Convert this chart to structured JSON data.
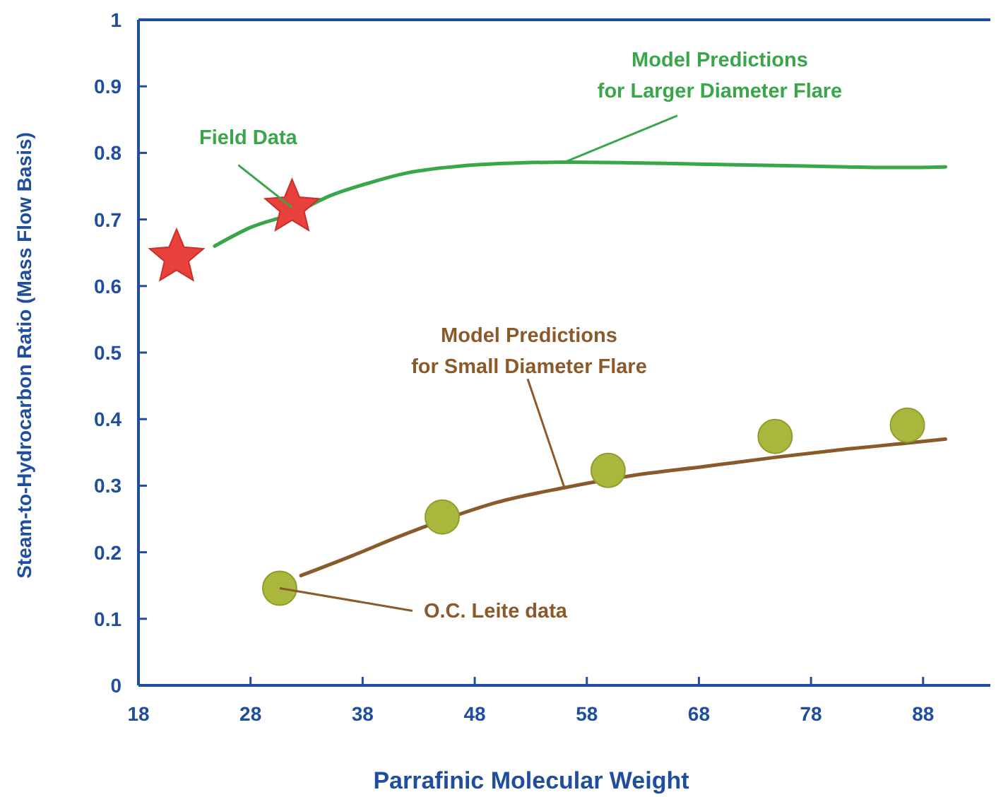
{
  "chart_data": {
    "type": "line",
    "xlabel": "Parrafinic Molecular Weight",
    "ylabel": "Steam-to-Hydrocarbon Ratio (Mass Flow Basis)",
    "xlim": [
      18,
      94
    ],
    "xticks": [
      18,
      28,
      38,
      48,
      58,
      68,
      78,
      88
    ],
    "ylim": [
      0,
      1
    ],
    "yticks": [
      0,
      0.1,
      0.2,
      0.3,
      0.4,
      0.5,
      0.6,
      0.7,
      0.8,
      0.9,
      1
    ],
    "grid": false,
    "series": [
      {
        "color": "#3aa64a",
        "marker": "none",
        "x": [
          24.8,
          28,
          32.1,
          35,
          38.4,
          42,
          47.2,
          52,
          56,
          62,
          68.6,
          75,
          81.2,
          86,
          90
        ],
        "values": [
          0.66,
          0.688,
          0.711,
          0.735,
          0.754,
          0.77,
          0.781,
          0.785,
          0.786,
          0.785,
          0.783,
          0.781,
          0.779,
          0.778,
          0.779
        ]
      },
      {
        "color": "#8b5a2b",
        "marker": "none",
        "x": [
          32.5,
          37.1,
          41,
          45.1,
          50,
          56,
          62,
          68.6,
          75,
          81.2,
          86,
          90
        ],
        "values": [
          0.165,
          0.195,
          0.222,
          0.248,
          0.275,
          0.297,
          0.315,
          0.329,
          0.343,
          0.355,
          0.363,
          0.37
        ]
      },
      {
        "type": "scatter",
        "color": "#e8413c",
        "marker": "star",
        "x": [
          21.4,
          31.7
        ],
        "values": [
          0.643,
          0.718
        ]
      },
      {
        "type": "scatter",
        "color": "#a9b83c",
        "marker": "circle",
        "x": [
          30.6,
          45.1,
          59.9,
          74.8,
          86.6
        ],
        "values": [
          0.146,
          0.253,
          0.323,
          0.374,
          0.391
        ]
      }
    ],
    "annotations": [
      {
        "text": "Field Data",
        "x": 31.7,
        "y": 0.718
      },
      {
        "text": "Model Predictions\nfor Larger Diameter Flare",
        "x": 56,
        "y": 0.786
      },
      {
        "text": "Model Predictions\nfor Small Diameter Flare",
        "x": 56,
        "y": 0.297
      },
      {
        "text": "O.C. Leite data",
        "x": 30.6,
        "y": 0.146
      }
    ]
  }
}
